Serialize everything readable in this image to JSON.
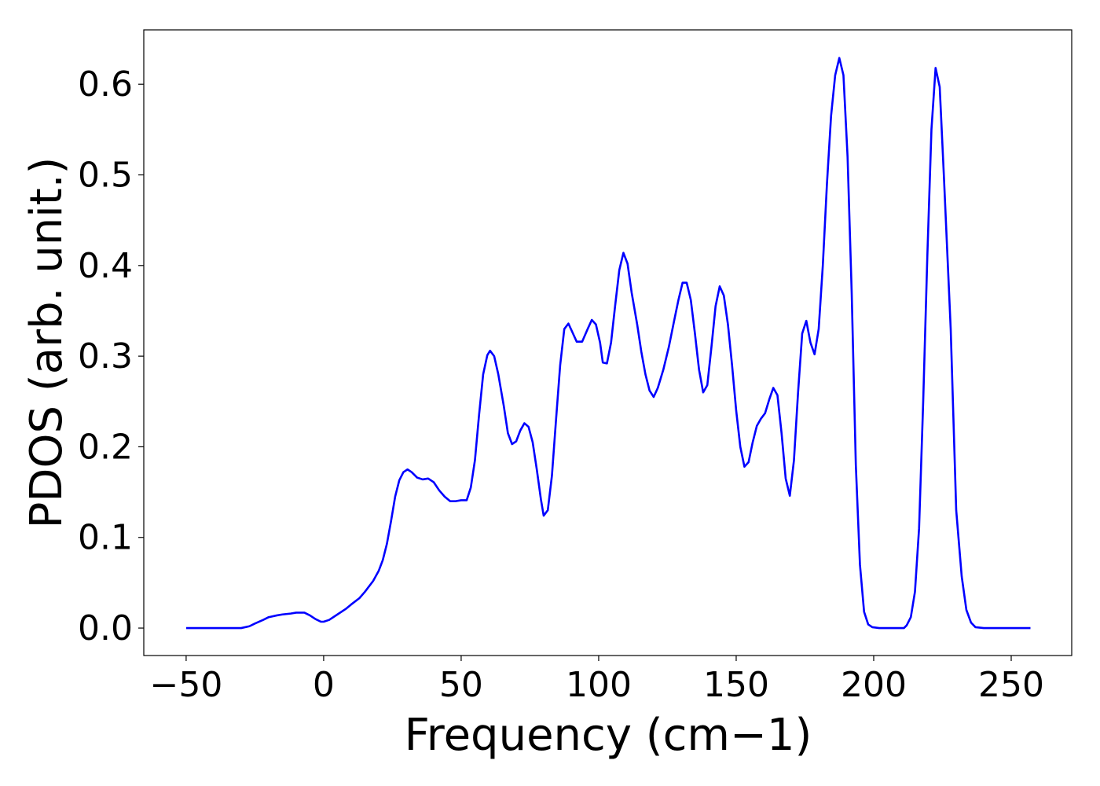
{
  "chart_data": {
    "type": "line",
    "xlabel": "Frequency (cm−1)",
    "ylabel": "PDOS (arb. unit.)",
    "xlim": [
      -65.4,
      272
    ],
    "ylim": [
      -0.0303,
      0.66
    ],
    "xticks": [
      {
        "value": -50,
        "label": "−50"
      },
      0,
      50,
      100,
      150,
      200,
      250
    ],
    "yticks": [
      {
        "value": 0,
        "label": "0.0"
      },
      0.1,
      0.2,
      0.3,
      0.4,
      0.5,
      0.6
    ],
    "grid": false,
    "x": [
      -50,
      -40,
      -30,
      -27,
      -25,
      -22,
      -20,
      -17,
      -15,
      -12,
      -10,
      -7,
      -5,
      -3,
      -1,
      0,
      2,
      5,
      8,
      10,
      13,
      15,
      18,
      20,
      21.5,
      23,
      24.5,
      26,
      27.5,
      29,
      30.5,
      32,
      34,
      36,
      38,
      40,
      42,
      44,
      46,
      48,
      50,
      52,
      53.5,
      55,
      56.5,
      58,
      59.5,
      60.5,
      62,
      63.5,
      65.5,
      67,
      68.5,
      70,
      71.5,
      73,
      74.5,
      76,
      77.5,
      79,
      80,
      81.5,
      83,
      84.5,
      86,
      87.5,
      89,
      90.5,
      92,
      94,
      96,
      97.5,
      99,
      100.5,
      101.5,
      103,
      104.5,
      106,
      107.5,
      109,
      110.5,
      112,
      114,
      115.5,
      117,
      118.5,
      120,
      121.5,
      123.5,
      125.5,
      127.5,
      129,
      130.5,
      132,
      133.5,
      135,
      136.5,
      138,
      139.5,
      141,
      142.5,
      144,
      145.5,
      147,
      148.5,
      150,
      151.5,
      153,
      154.5,
      156,
      157.5,
      159,
      160.5,
      162,
      163.5,
      165,
      166.5,
      168,
      169.5,
      171,
      172.5,
      174,
      175.5,
      177,
      178.5,
      180,
      181.5,
      183,
      184.5,
      186,
      187.5,
      189,
      190.5,
      192,
      193.5,
      195,
      196.5,
      198,
      199.5,
      202,
      207,
      211,
      212,
      213.5,
      215,
      216.5,
      218,
      219.5,
      221,
      222.5,
      224,
      225.5,
      228,
      230,
      232,
      233.7,
      235.4,
      237,
      240,
      245,
      257
    ],
    "series": [
      {
        "name": "PDOS",
        "color": "#0000ff",
        "values": [
          0,
          0,
          0,
          0.002,
          0.005,
          0.009,
          0.012,
          0.014,
          0.015,
          0.016,
          0.017,
          0.017,
          0.014,
          0.01,
          0.007,
          0.007,
          0.009,
          0.015,
          0.021,
          0.026,
          0.033,
          0.04,
          0.052,
          0.063,
          0.075,
          0.093,
          0.118,
          0.145,
          0.163,
          0.172,
          0.175,
          0.172,
          0.166,
          0.164,
          0.165,
          0.161,
          0.152,
          0.145,
          0.14,
          0.14,
          0.141,
          0.141,
          0.155,
          0.185,
          0.235,
          0.28,
          0.301,
          0.306,
          0.3,
          0.28,
          0.245,
          0.215,
          0.203,
          0.206,
          0.218,
          0.226,
          0.222,
          0.205,
          0.175,
          0.142,
          0.124,
          0.13,
          0.168,
          0.23,
          0.29,
          0.33,
          0.336,
          0.326,
          0.316,
          0.316,
          0.33,
          0.34,
          0.335,
          0.315,
          0.293,
          0.292,
          0.315,
          0.356,
          0.395,
          0.414,
          0.402,
          0.37,
          0.335,
          0.305,
          0.28,
          0.262,
          0.255,
          0.265,
          0.285,
          0.31,
          0.34,
          0.362,
          0.381,
          0.381,
          0.362,
          0.325,
          0.285,
          0.26,
          0.268,
          0.31,
          0.355,
          0.377,
          0.367,
          0.335,
          0.29,
          0.24,
          0.2,
          0.178,
          0.183,
          0.205,
          0.223,
          0.231,
          0.237,
          0.252,
          0.265,
          0.257,
          0.215,
          0.165,
          0.146,
          0.185,
          0.26,
          0.325,
          0.339,
          0.315,
          0.302,
          0.33,
          0.4,
          0.49,
          0.565,
          0.61,
          0.629,
          0.61,
          0.52,
          0.37,
          0.18,
          0.07,
          0.018,
          0.004,
          0.001,
          0,
          0,
          0,
          0.003,
          0.012,
          0.04,
          0.11,
          0.25,
          0.41,
          0.55,
          0.618,
          0.597,
          0.5,
          0.33,
          0.13,
          0.057,
          0.02,
          0.006,
          0.001,
          0,
          0,
          0
        ]
      }
    ]
  }
}
